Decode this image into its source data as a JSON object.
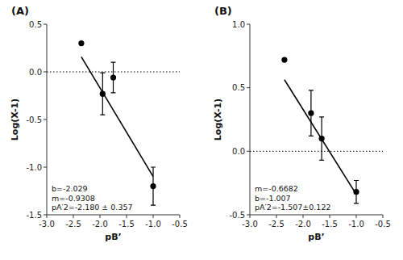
{
  "chart_data": [
    {
      "type": "scatter",
      "title": "(A)",
      "x_label": "pB’",
      "y_label": "Log(X-1)",
      "annotation": "b=-2.029\nm=-0.9308\npA′2=-2.180 ± 0.357",
      "xlim": [
        -3.0,
        -0.5
      ],
      "ylim": [
        -1.5,
        0.5
      ],
      "xticks": [
        {
          "value": -3.0,
          "label": "-3.0"
        },
        -2.5,
        {
          "value": -2.0,
          "label": "-2.0"
        },
        -1.5,
        {
          "value": -1.0,
          "label": "-1.0"
        },
        -0.5
      ],
      "yticks": [
        -1.5,
        {
          "value": -1.0,
          "label": "-1.0"
        },
        -0.5,
        {
          "value": 0.0,
          "label": "0.0"
        },
        0.5
      ],
      "grid": false,
      "series": [
        {
          "type": "line",
          "x": [
            -3.0,
            -0.5
          ],
          "values": [
            0,
            0
          ],
          "color": "#000000",
          "line_style": "dotted"
        },
        {
          "type": "line",
          "x": [
            -2.35,
            -1.0
          ],
          "values": [
            0.15838,
            -1.0982
          ],
          "color": "#000000",
          "line_style": "solid"
        },
        {
          "type": "scatter",
          "x": [
            -2.35,
            -1.95,
            -1.75,
            -1.0
          ],
          "values": [
            0.3,
            -0.23,
            -0.06,
            -1.2
          ],
          "errors": [
            0.0,
            0.22,
            0.16,
            0.2
          ],
          "color": "#000000",
          "marker": "circle"
        }
      ]
    },
    {
      "type": "scatter",
      "title": "(B)",
      "x_label": "pB’",
      "y_label": "Log(X-1)",
      "annotation": "m=-0.6682\nb=-1.007\npA′2=-1.507±0.122",
      "xlim": [
        -3.0,
        -0.5
      ],
      "ylim": [
        -0.5,
        1.0
      ],
      "xticks": [
        {
          "value": -3.0,
          "label": "-3.0"
        },
        -2.5,
        {
          "value": -2.0,
          "label": "-2.0"
        },
        -1.5,
        {
          "value": -1.0,
          "label": "-1.0"
        },
        -0.5
      ],
      "yticks": [
        -0.5,
        {
          "value": 0.0,
          "label": "0.0"
        },
        0.5,
        {
          "value": 1.0,
          "label": "1.0"
        }
      ],
      "grid": false,
      "series": [
        {
          "type": "line",
          "x": [
            -3.0,
            -0.5
          ],
          "values": [
            0,
            0
          ],
          "color": "#000000",
          "line_style": "dotted"
        },
        {
          "type": "line",
          "x": [
            -2.35,
            -1.0
          ],
          "values": [
            0.56327,
            -0.3388
          ],
          "color": "#000000",
          "line_style": "solid"
        },
        {
          "type": "scatter",
          "x": [
            -2.35,
            -1.85,
            -1.65,
            -1.0
          ],
          "values": [
            0.72,
            0.3,
            0.1,
            -0.32
          ],
          "errors": [
            0.0,
            0.18,
            0.17,
            0.09
          ],
          "color": "#000000",
          "marker": "circle"
        }
      ]
    }
  ]
}
